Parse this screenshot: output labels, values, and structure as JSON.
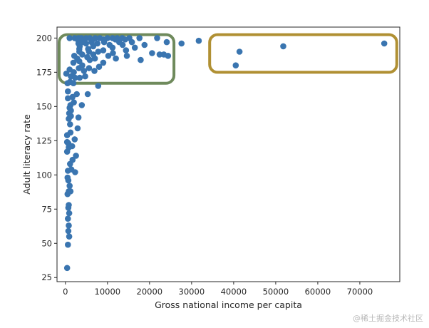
{
  "chart_data": {
    "type": "scatter",
    "title": "",
    "xlabel": "Gross national income per capita",
    "ylabel": "Adult literacy rate",
    "xlim": [
      -2000,
      79500
    ],
    "ylim": [
      22,
      208
    ],
    "xticks": [
      0,
      10000,
      20000,
      30000,
      40000,
      50000,
      60000,
      70000
    ],
    "yticks": [
      25,
      50,
      75,
      100,
      125,
      150,
      175,
      200
    ],
    "grid": false,
    "point_color": "#3a75b0",
    "highlight_boxes": [
      {
        "color": "#6f8a5c",
        "x_range": [
          -1500,
          25800
        ],
        "y_range": [
          167,
          202.5
        ]
      },
      {
        "color": "#b09033",
        "x_range": [
          34300,
          78800
        ],
        "y_range": [
          175,
          202.5
        ]
      }
    ],
    "series": [
      {
        "points": [
          [
            400,
            32
          ],
          [
            600,
            49
          ],
          [
            900,
            55
          ],
          [
            700,
            59
          ],
          [
            800,
            63
          ],
          [
            600,
            68
          ],
          [
            900,
            72
          ],
          [
            700,
            76
          ],
          [
            800,
            78
          ],
          [
            500,
            86
          ],
          [
            800,
            88
          ],
          [
            1200,
            88
          ],
          [
            1000,
            92
          ],
          [
            700,
            96
          ],
          [
            500,
            98
          ],
          [
            600,
            103
          ],
          [
            1400,
            104
          ],
          [
            2300,
            102
          ],
          [
            1100,
            108
          ],
          [
            1700,
            111
          ],
          [
            2500,
            114
          ],
          [
            400,
            117
          ],
          [
            800,
            120
          ],
          [
            1600,
            121
          ],
          [
            700,
            123
          ],
          [
            400,
            124
          ],
          [
            2200,
            126
          ],
          [
            400,
            129
          ],
          [
            1200,
            131
          ],
          [
            2900,
            134
          ],
          [
            1100,
            137
          ],
          [
            800,
            141
          ],
          [
            1300,
            143
          ],
          [
            3100,
            142
          ],
          [
            900,
            145
          ],
          [
            1300,
            147
          ],
          [
            1000,
            149
          ],
          [
            1200,
            151
          ],
          [
            2000,
            153
          ],
          [
            3900,
            151
          ],
          [
            600,
            156
          ],
          [
            1700,
            157
          ],
          [
            600,
            161
          ],
          [
            2700,
            159
          ],
          [
            5300,
            159
          ],
          [
            500,
            167
          ],
          [
            1100,
            168
          ],
          [
            1900,
            167
          ],
          [
            7800,
            165
          ],
          [
            200,
            174
          ],
          [
            1300,
            172
          ],
          [
            2300,
            171
          ],
          [
            3400,
            171
          ],
          [
            4700,
            172
          ],
          [
            2000,
            175
          ],
          [
            1000,
            177
          ],
          [
            3200,
            178
          ],
          [
            4400,
            176
          ],
          [
            5600,
            178
          ],
          [
            6900,
            176
          ],
          [
            4000,
            180
          ],
          [
            8000,
            179
          ],
          [
            1900,
            182
          ],
          [
            3300,
            183
          ],
          [
            5800,
            184
          ],
          [
            9000,
            182
          ],
          [
            2800,
            185
          ],
          [
            5200,
            186
          ],
          [
            7000,
            185
          ],
          [
            12000,
            185
          ],
          [
            17900,
            184
          ],
          [
            2100,
            187
          ],
          [
            4000,
            188
          ],
          [
            6600,
            188
          ],
          [
            10200,
            187
          ],
          [
            14600,
            187
          ],
          [
            22400,
            188
          ],
          [
            24400,
            187
          ],
          [
            3300,
            190
          ],
          [
            5600,
            190
          ],
          [
            7800,
            190
          ],
          [
            11300,
            189
          ],
          [
            20600,
            189
          ],
          [
            23400,
            188
          ],
          [
            3300,
            192
          ],
          [
            5400,
            192
          ],
          [
            9000,
            191
          ],
          [
            14400,
            191
          ],
          [
            3400,
            194
          ],
          [
            6600,
            194
          ],
          [
            11200,
            193
          ],
          [
            16500,
            193
          ],
          [
            3100,
            196
          ],
          [
            4900,
            196
          ],
          [
            7600,
            196
          ],
          [
            10500,
            195
          ],
          [
            13600,
            195
          ],
          [
            18800,
            195
          ],
          [
            4000,
            197
          ],
          [
            6200,
            197
          ],
          [
            9200,
            197
          ],
          [
            12800,
            197
          ],
          [
            15800,
            197
          ],
          [
            24100,
            197
          ],
          [
            27600,
            196
          ],
          [
            1000,
            200
          ],
          [
            2200,
            200
          ],
          [
            3100,
            200
          ],
          [
            3800,
            200
          ],
          [
            4900,
            200
          ],
          [
            5800,
            200
          ],
          [
            7100,
            200
          ],
          [
            8200,
            200
          ],
          [
            10000,
            200
          ],
          [
            11200,
            200
          ],
          [
            12300,
            200
          ],
          [
            13500,
            200
          ],
          [
            15200,
            200
          ],
          [
            17600,
            200
          ],
          [
            21800,
            200
          ],
          [
            2900,
            199
          ],
          [
            4500,
            199
          ],
          [
            6500,
            199
          ],
          [
            9100,
            199
          ],
          [
            11900,
            199
          ],
          [
            14200,
            199
          ],
          [
            31700,
            198
          ],
          [
            40500,
            180
          ],
          [
            41400,
            190
          ],
          [
            51800,
            194
          ],
          [
            75800,
            196
          ]
        ]
      }
    ]
  },
  "watermark": "@稀土掘金技术社区"
}
